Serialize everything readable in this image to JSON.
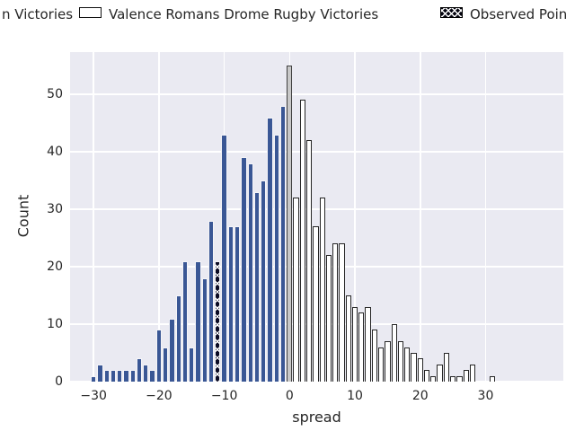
{
  "figure": {
    "background": "#ffffff",
    "plot_background": "#EAEAF2",
    "grid_color": "#ffffff",
    "text_color": "#262626",
    "blue_bar_color": "#3A5795",
    "white_bar_color": "#ffffff",
    "gray_bar_color": "#c8c8c8",
    "hatched_bar_color": "#0b0b24"
  },
  "legend": {
    "items": [
      {
        "label": "n Victories",
        "swatch": "clipped-offscreen-left",
        "series": "blue"
      },
      {
        "label": "Valence Romans Drome Rugby Victories",
        "swatch": "white-outlined",
        "series": "white"
      },
      {
        "label": "Observed Poin",
        "swatch": "black-crosshatch",
        "series": "observed"
      }
    ]
  },
  "chart_data": {
    "type": "bar",
    "subtype": "histogram",
    "title": "",
    "xlabel": "spread",
    "ylabel": "Count",
    "xlim": [
      -33.6,
      41.9
    ],
    "ylim": [
      0,
      57.35
    ],
    "x_ticks": [
      -30,
      -20,
      -10,
      0,
      10,
      20,
      30
    ],
    "y_ticks": [
      0,
      10,
      20,
      30,
      40,
      50
    ],
    "bin_width": 1,
    "grid": true,
    "legend_position": "top",
    "bars": [
      [
        -30,
        1,
        "blue"
      ],
      [
        -29,
        3,
        "blue"
      ],
      [
        -28,
        2,
        "blue"
      ],
      [
        -27,
        2,
        "blue"
      ],
      [
        -26,
        2,
        "blue"
      ],
      [
        -25,
        2,
        "blue"
      ],
      [
        -24,
        2,
        "blue"
      ],
      [
        -23,
        4,
        "blue"
      ],
      [
        -22,
        3,
        "blue"
      ],
      [
        -21,
        2,
        "blue"
      ],
      [
        -20,
        9,
        "blue"
      ],
      [
        -19,
        6,
        "blue"
      ],
      [
        -18,
        11,
        "blue"
      ],
      [
        -17,
        15,
        "blue"
      ],
      [
        -16,
        21,
        "blue"
      ],
      [
        -15,
        6,
        "blue"
      ],
      [
        -14,
        21,
        "blue"
      ],
      [
        -13,
        18,
        "blue"
      ],
      [
        -12,
        28,
        "blue"
      ],
      [
        -11,
        21,
        "hatched"
      ],
      [
        -10,
        43,
        "blue"
      ],
      [
        -9,
        27,
        "blue"
      ],
      [
        -8,
        27,
        "blue"
      ],
      [
        -7,
        39,
        "blue"
      ],
      [
        -6,
        38,
        "blue"
      ],
      [
        -5,
        33,
        "blue"
      ],
      [
        -4,
        35,
        "blue"
      ],
      [
        -3,
        46,
        "blue"
      ],
      [
        -2,
        43,
        "blue"
      ],
      [
        -1,
        48,
        "blue"
      ],
      [
        0,
        55,
        "gray"
      ],
      [
        1,
        32,
        "white"
      ],
      [
        2,
        49,
        "white"
      ],
      [
        3,
        42,
        "white"
      ],
      [
        4,
        27,
        "white"
      ],
      [
        5,
        32,
        "white"
      ],
      [
        6,
        22,
        "white"
      ],
      [
        7,
        24,
        "white"
      ],
      [
        8,
        24,
        "white"
      ],
      [
        9,
        15,
        "white"
      ],
      [
        10,
        13,
        "white"
      ],
      [
        11,
        12,
        "white"
      ],
      [
        12,
        13,
        "white"
      ],
      [
        13,
        9,
        "white"
      ],
      [
        14,
        6,
        "white"
      ],
      [
        15,
        7,
        "white"
      ],
      [
        16,
        10,
        "white"
      ],
      [
        17,
        7,
        "white"
      ],
      [
        18,
        6,
        "white"
      ],
      [
        19,
        5,
        "white"
      ],
      [
        20,
        4,
        "white"
      ],
      [
        21,
        2,
        "white"
      ],
      [
        22,
        1,
        "white"
      ],
      [
        23,
        3,
        "white"
      ],
      [
        24,
        5,
        "white"
      ],
      [
        25,
        1,
        "white"
      ],
      [
        26,
        1,
        "white"
      ],
      [
        27,
        2,
        "white"
      ],
      [
        28,
        3,
        "white"
      ],
      [
        31,
        1,
        "white"
      ]
    ]
  }
}
